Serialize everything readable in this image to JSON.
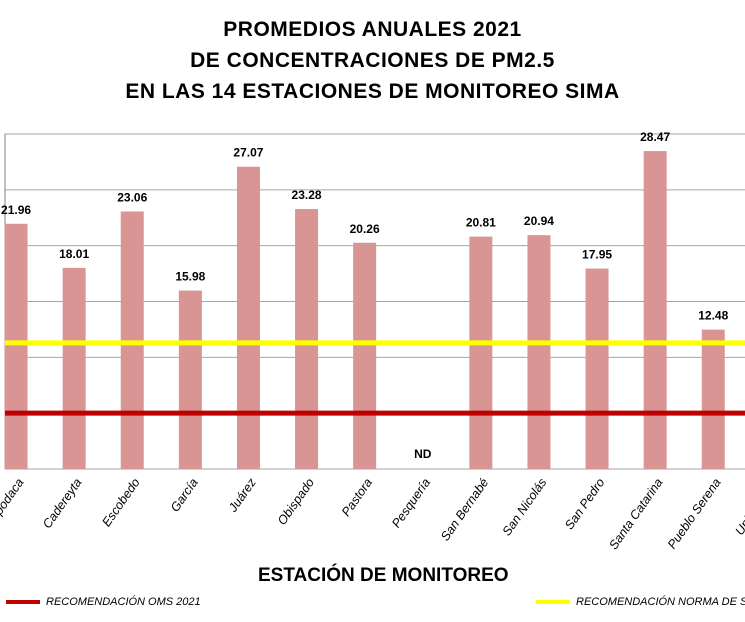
{
  "chart_data": {
    "type": "bar",
    "title_lines": [
      "PROMEDIOS ANUALES 2021",
      "DE CONCENTRACIONES DE PM2.5",
      "EN LAS 14 ESTACIONES DE MONITOREO SIMA"
    ],
    "xlabel": "ESTACIÓN DE MONITOREO",
    "categories": [
      "Apodaca",
      "Cadereyta",
      "Escobedo",
      "García",
      "Juárez",
      "Obispado",
      "Pastora",
      "Pesquería",
      "San Bernabé",
      "San Nicolás",
      "San Pedro",
      "Santa Catarina",
      "Pueblo Serena",
      "Universidad"
    ],
    "values": [
      21.96,
      18.01,
      23.06,
      15.98,
      27.07,
      23.28,
      20.26,
      null,
      20.81,
      20.94,
      17.95,
      28.47,
      12.48,
      null
    ],
    "value_labels": [
      "21.96",
      "18.01",
      "23.06",
      "15.98",
      "27.07",
      "23.28",
      "20.26",
      "ND",
      "20.81",
      "20.94",
      "17.95",
      "28.47",
      "12.48",
      ""
    ],
    "ylim": [
      0,
      30
    ],
    "grid": true,
    "bar_color": "#d99594",
    "reference_lines": [
      {
        "name": "RECOMENDACIÓN OMS 2021",
        "value": 5,
        "color": "#c00000"
      },
      {
        "name": "RECOMENDACIÓN NORMA DE SALUD",
        "value": 11.3,
        "color": "#ffff00"
      }
    ]
  },
  "legend": {
    "oms_label": "RECOMENDACIÓN OMS 2021",
    "norma_label": "RECOMENDACIÓN NORMA DE S"
  }
}
